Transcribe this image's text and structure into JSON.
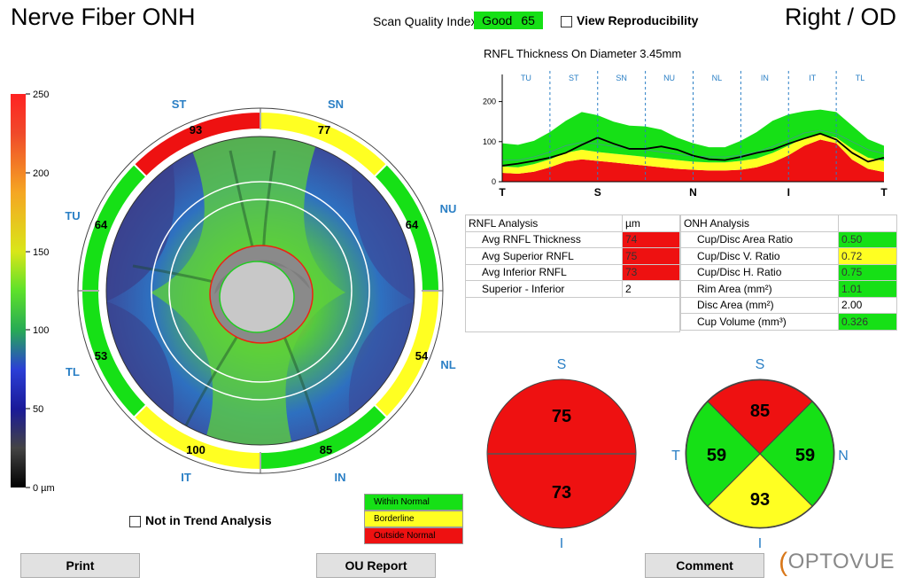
{
  "header": {
    "title": "Nerve Fiber ONH",
    "eye": "Right / OD",
    "sqi_label": "Scan Quality Index",
    "sqi_status": "Good",
    "sqi_value": "65",
    "view_reproducibility": "View Reproducibility"
  },
  "colors": {
    "within_normal": "#16e016",
    "borderline": "#ffff22",
    "outside_normal": "#ee1111",
    "accent_blue": "#2a7fc5"
  },
  "colorbar": {
    "ticks": [
      "250",
      "200",
      "150",
      "100",
      "50",
      "0 µm"
    ]
  },
  "sector_map": {
    "labels": {
      "ST": "ST",
      "SN": "SN",
      "NU": "NU",
      "NL": "NL",
      "IN": "IN",
      "IT": "IT",
      "TL": "TL",
      "TU": "TU"
    },
    "values": {
      "ST": "93",
      "SN": "77",
      "NU": "64",
      "NL": "54",
      "IN": "85",
      "IT": "100",
      "TL": "53",
      "TU": "64"
    }
  },
  "not_in_trend": "Not in Trend Analysis",
  "legend": {
    "within": "Within Normal",
    "borderline": "Borderline",
    "outside": "Outside Normal"
  },
  "chart_data": {
    "type": "area",
    "title": "RNFL Thickness On Diameter 3.45mm",
    "sectors": [
      "TU",
      "ST",
      "SN",
      "NU",
      "NL",
      "IN",
      "IT",
      "TL"
    ],
    "x_ticks": [
      "T",
      "S",
      "N",
      "I",
      "T"
    ],
    "y_ticks": [
      "0",
      "100",
      "200"
    ],
    "ylim": [
      0,
      250
    ],
    "grid": false,
    "series": [
      {
        "values": [
          22,
          20,
          25,
          36,
          50,
          56,
          52,
          48,
          44,
          40,
          36,
          32,
          30,
          28,
          28,
          30,
          36,
          48,
          66,
          90,
          105,
          96,
          55,
          32,
          24
        ]
      },
      {
        "values": [
          38,
          36,
          44,
          56,
          72,
          80,
          74,
          70,
          66,
          62,
          58,
          54,
          50,
          48,
          48,
          52,
          58,
          72,
          90,
          110,
          118,
          110,
          82,
          60,
          52
        ]
      },
      {
        "values": [
          54,
          54,
          62,
          74,
          90,
          98,
          94,
          88,
          84,
          80,
          74,
          68,
          64,
          62,
          62,
          66,
          74,
          88,
          104,
          122,
          128,
          120,
          100,
          80,
          70
        ]
      },
      {
        "values": [
          96,
          92,
          102,
          124,
          152,
          174,
          166,
          150,
          140,
          138,
          130,
          110,
          96,
          86,
          86,
          102,
          124,
          152,
          168,
          176,
          180,
          174,
          140,
          106,
          90
        ]
      },
      {
        "values": [
          40,
          45,
          52,
          60,
          72,
          92,
          110,
          95,
          82,
          82,
          88,
          80,
          65,
          56,
          54,
          62,
          72,
          80,
          95,
          108,
          120,
          105,
          72,
          50,
          60
        ]
      }
    ]
  },
  "rnfl_table": {
    "header": [
      "RNFL Analysis",
      "µm"
    ],
    "rows": [
      {
        "label": "Avg RNFL Thickness",
        "value": "74",
        "status": "red"
      },
      {
        "label": "Avg Superior RNFL",
        "value": "75",
        "status": "red"
      },
      {
        "label": "Avg Inferior RNFL",
        "value": "73",
        "status": "red"
      },
      {
        "label": "Superior - Inferior",
        "value": "2",
        "status": "none"
      }
    ]
  },
  "onh_table": {
    "header": [
      "ONH Analysis",
      ""
    ],
    "rows": [
      {
        "label": "Cup/Disc Area Ratio",
        "value": "0.50",
        "status": "green"
      },
      {
        "label": "Cup/Disc V. Ratio",
        "value": "0.72",
        "status": "yellow"
      },
      {
        "label": "Cup/Disc H. Ratio",
        "value": "0.75",
        "status": "green"
      },
      {
        "label": "Rim Area (mm²)",
        "value": "1.01",
        "status": "green"
      },
      {
        "label": "Disc Area (mm²)",
        "value": "2.00",
        "status": "none"
      },
      {
        "label": "Cup Volume (mm³)",
        "value": "0.326",
        "status": "green"
      }
    ]
  },
  "hemi_circle": {
    "s_label": "S",
    "i_label": "I",
    "superior": "75",
    "inferior": "73"
  },
  "quad_circle": {
    "s_label": "S",
    "i_label": "I",
    "t_label": "T",
    "n_label": "N",
    "superior": "85",
    "temporal": "59",
    "nasal": "59",
    "inferior": "93"
  },
  "buttons": {
    "print": "Print",
    "ou_report": "OU Report",
    "comment": "Comment"
  },
  "logo": "OPTOVUE"
}
